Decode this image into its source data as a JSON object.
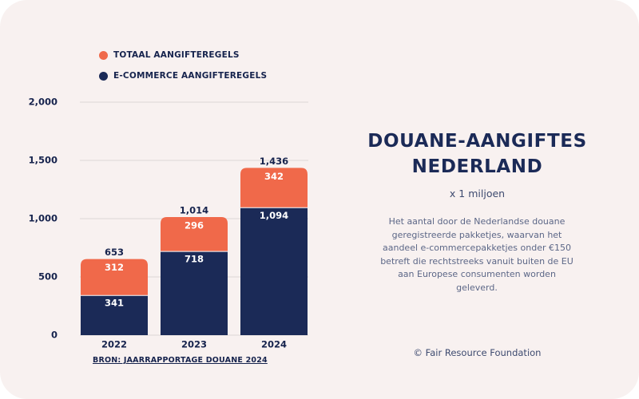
{
  "colors": {
    "background": "#f8f1f0",
    "total": "#f0694a",
    "ecommerce": "#1b2a57",
    "text_dark": "#16234d",
    "text_muted": "#5c6787",
    "gridline": "#dcd6d6"
  },
  "legend": {
    "total_label": "TOTAAL AANGIFTEREGELS",
    "ecommerce_label": "E-COMMERCE AANGIFTEREGELS"
  },
  "source": "BRON: JAARRAPPORTAGE DOUANE 2024",
  "panel": {
    "title_line1": "DOUANE-AANGIFTES",
    "title_line2": "NEDERLAND",
    "unit": "x 1 miljoen",
    "description": "Het aantal door de Nederlandse douane geregistreerde pakketjes, waarvan het aandeel e-commercepakketjes onder €150 betreft die rechtstreeks vanuit buiten de EU aan Europese consumenten worden geleverd.",
    "credit": "© Fair Resource Foundation"
  },
  "chart_data": {
    "type": "bar",
    "stacked": true,
    "categories": [
      "2022",
      "2023",
      "2024"
    ],
    "series": [
      {
        "name": "E-COMMERCE AANGIFTEREGELS",
        "values": [
          341,
          718,
          1094
        ],
        "color": "#1b2a57"
      },
      {
        "name": "",
        "values": [
          312,
          296,
          342
        ],
        "color": "#f0694a"
      }
    ],
    "totals": [
      653,
      1014,
      1436
    ],
    "total_labels": [
      "653",
      "1,014",
      "1,436"
    ],
    "segment_labels": {
      "ecommerce": [
        "341",
        "718",
        "1,094"
      ],
      "other": [
        "312",
        "296",
        "342"
      ]
    },
    "yticks": [
      0,
      500,
      1000,
      1500,
      2000
    ],
    "ytick_labels": [
      "0",
      "500",
      "1,000",
      "1,500",
      "2,000"
    ],
    "ylim": [
      0,
      2000
    ],
    "grid": true,
    "legend_position": "top-left"
  }
}
